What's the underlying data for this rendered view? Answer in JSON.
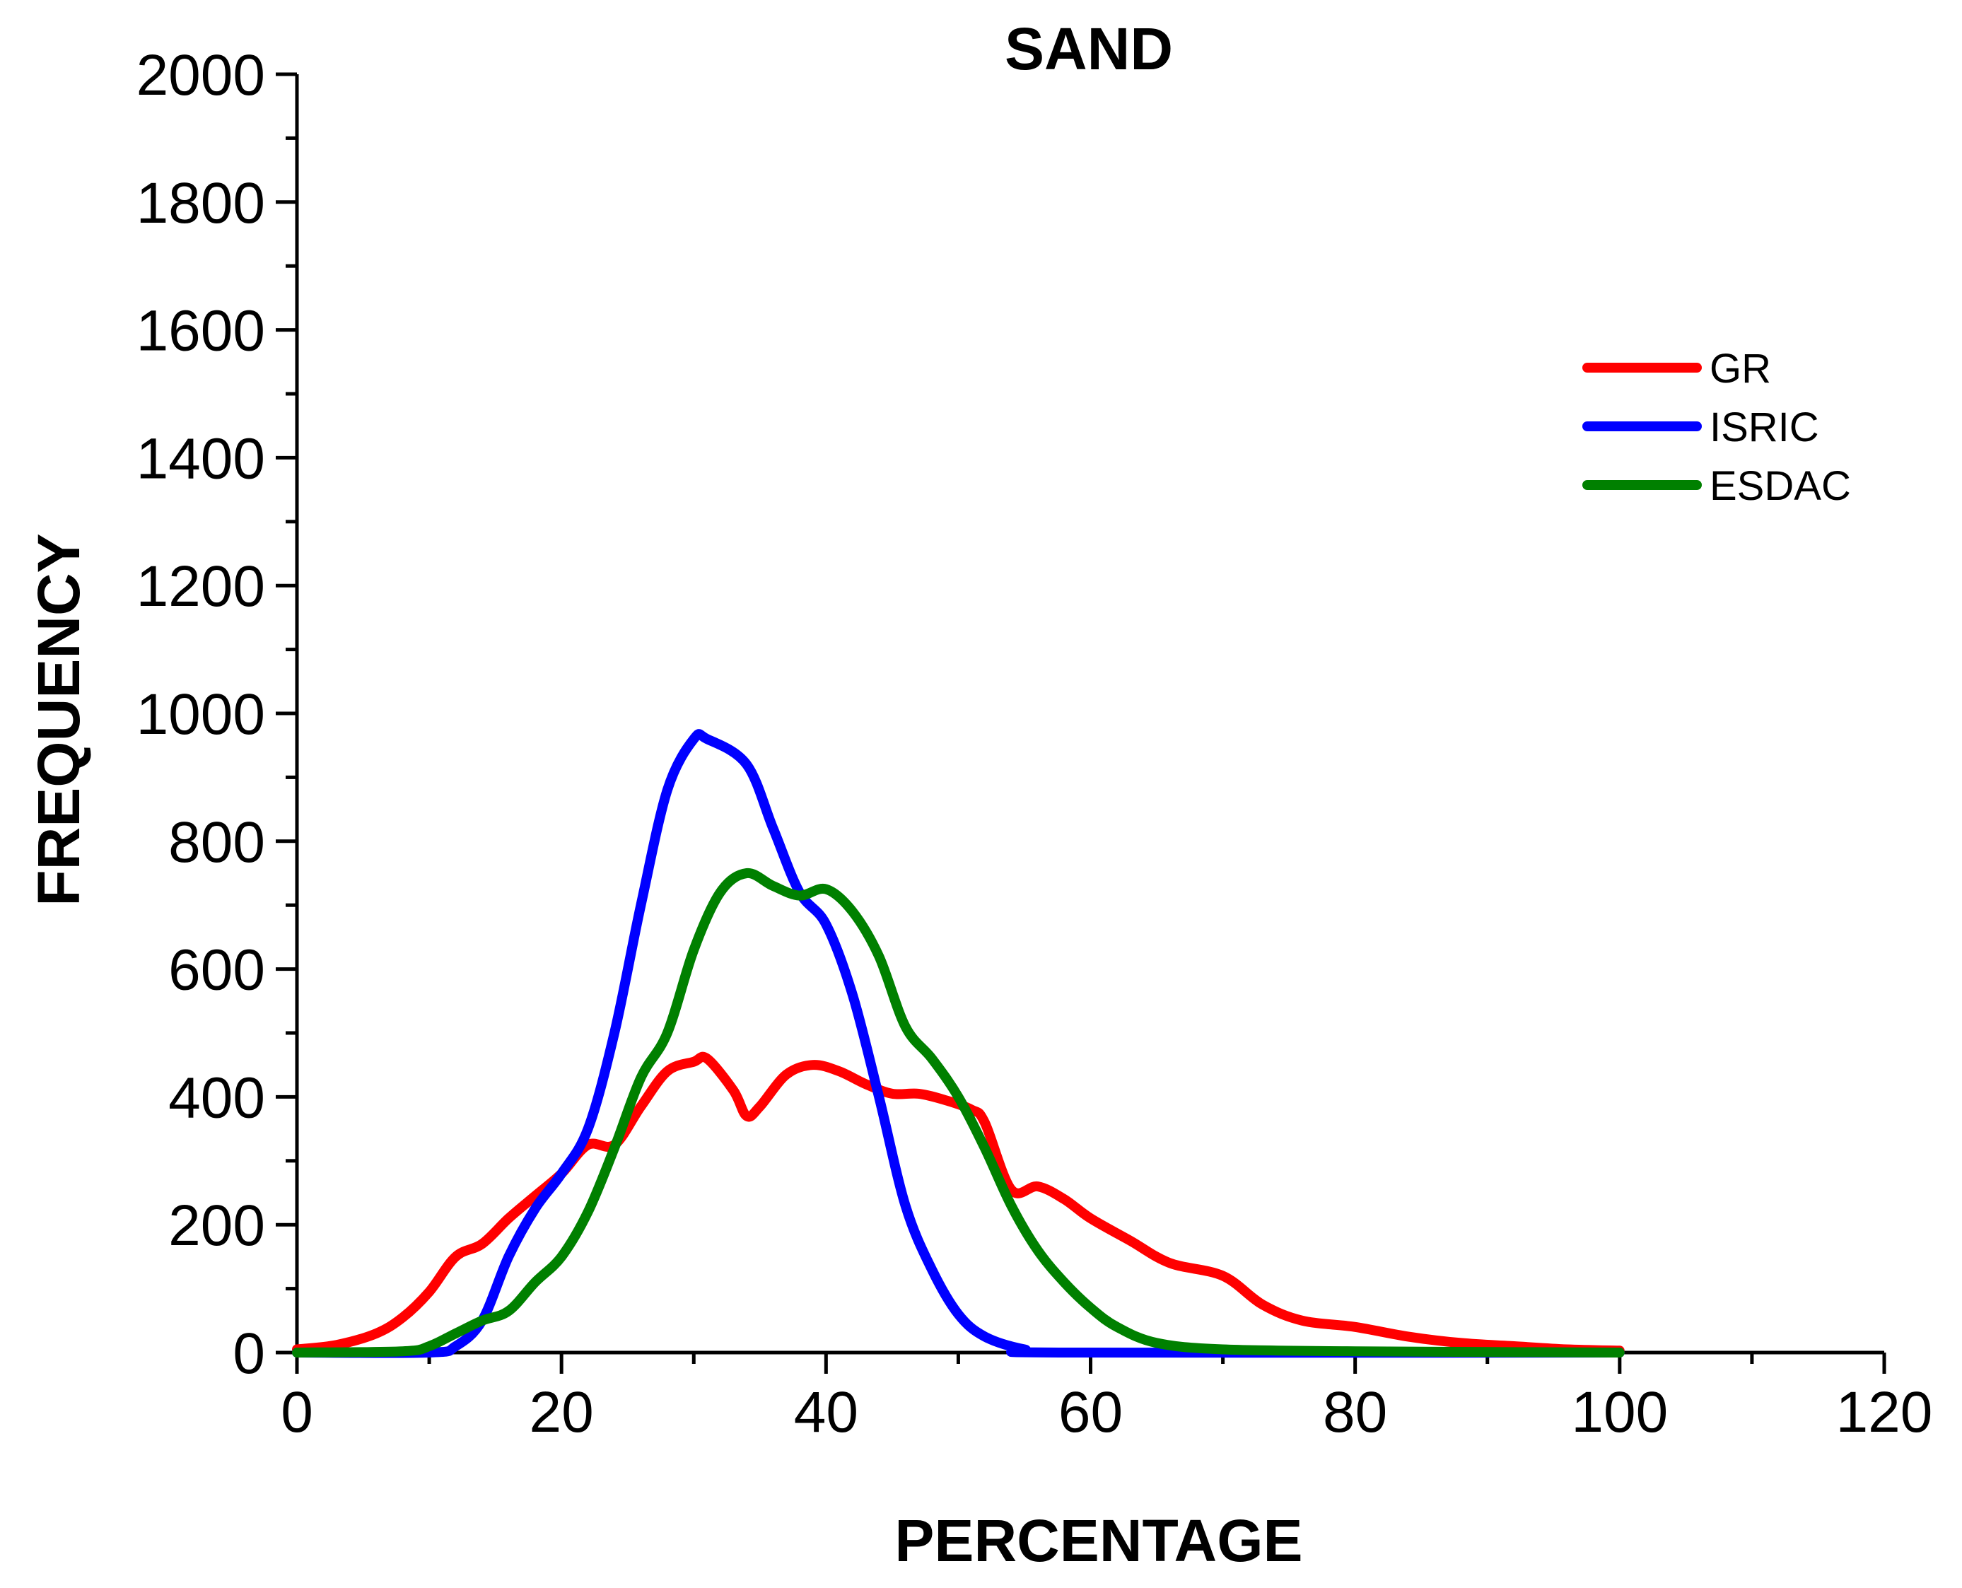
{
  "chart_data": {
    "type": "line",
    "title": "SAND",
    "xlabel": "PERCENTAGE",
    "ylabel": "FREQUENCY",
    "xlim": [
      0,
      120
    ],
    "ylim": [
      0,
      2000
    ],
    "x_ticks": [
      0,
      20,
      40,
      60,
      80,
      100,
      120
    ],
    "y_ticks": [
      0,
      200,
      400,
      600,
      800,
      1000,
      1200,
      1400,
      1600,
      1800,
      2000
    ],
    "x_tick_labels": [
      "0",
      "20",
      "40",
      "60",
      "80",
      "100",
      "120"
    ],
    "y_tick_labels": [
      "0",
      "200",
      "400",
      "600",
      "800",
      "1000",
      "1200",
      "1400",
      "1600",
      "1800",
      "2000"
    ],
    "legend_position": "top-right",
    "grid": false,
    "series": [
      {
        "name": "GR",
        "color": "#ff0000",
        "points": [
          [
            0,
            5
          ],
          [
            3,
            12
          ],
          [
            6,
            30
          ],
          [
            8,
            55
          ],
          [
            10,
            95
          ],
          [
            12,
            150
          ],
          [
            14,
            170
          ],
          [
            16,
            210
          ],
          [
            18,
            245
          ],
          [
            20,
            280
          ],
          [
            22,
            325
          ],
          [
            24,
            325
          ],
          [
            26,
            385
          ],
          [
            28,
            440
          ],
          [
            30,
            455
          ],
          [
            31,
            460
          ],
          [
            33,
            410
          ],
          [
            34,
            370
          ],
          [
            35,
            385
          ],
          [
            37,
            435
          ],
          [
            39,
            450
          ],
          [
            41,
            440
          ],
          [
            43,
            420
          ],
          [
            45,
            405
          ],
          [
            47,
            405
          ],
          [
            49,
            395
          ],
          [
            51,
            380
          ],
          [
            52,
            360
          ],
          [
            54,
            255
          ],
          [
            56,
            260
          ],
          [
            58,
            240
          ],
          [
            60,
            210
          ],
          [
            63,
            175
          ],
          [
            66,
            140
          ],
          [
            70,
            120
          ],
          [
            73,
            75
          ],
          [
            76,
            50
          ],
          [
            80,
            40
          ],
          [
            84,
            25
          ],
          [
            88,
            15
          ],
          [
            92,
            10
          ],
          [
            96,
            5
          ],
          [
            100,
            3
          ]
        ]
      },
      {
        "name": "ISRIC",
        "color": "#0000ff",
        "points": [
          [
            0,
            0
          ],
          [
            10,
            0
          ],
          [
            12,
            10
          ],
          [
            14,
            50
          ],
          [
            16,
            150
          ],
          [
            18,
            225
          ],
          [
            20,
            280
          ],
          [
            22,
            350
          ],
          [
            24,
            500
          ],
          [
            26,
            700
          ],
          [
            28,
            880
          ],
          [
            30,
            960
          ],
          [
            31,
            960
          ],
          [
            34,
            920
          ],
          [
            36,
            820
          ],
          [
            38,
            720
          ],
          [
            40,
            670
          ],
          [
            42,
            560
          ],
          [
            44,
            400
          ],
          [
            46,
            230
          ],
          [
            48,
            130
          ],
          [
            50,
            60
          ],
          [
            52,
            25
          ],
          [
            55,
            5
          ],
          [
            58,
            0
          ],
          [
            100,
            0
          ]
        ]
      },
      {
        "name": "ESDAC",
        "color": "#008000",
        "points": [
          [
            0,
            0
          ],
          [
            8,
            2
          ],
          [
            10,
            10
          ],
          [
            12,
            30
          ],
          [
            14,
            50
          ],
          [
            16,
            65
          ],
          [
            18,
            110
          ],
          [
            20,
            150
          ],
          [
            22,
            220
          ],
          [
            24,
            320
          ],
          [
            26,
            430
          ],
          [
            28,
            500
          ],
          [
            30,
            630
          ],
          [
            32,
            720
          ],
          [
            34,
            750
          ],
          [
            36,
            730
          ],
          [
            38,
            715
          ],
          [
            40,
            725
          ],
          [
            42,
            690
          ],
          [
            44,
            620
          ],
          [
            46,
            510
          ],
          [
            48,
            460
          ],
          [
            50,
            400
          ],
          [
            52,
            320
          ],
          [
            54,
            230
          ],
          [
            56,
            160
          ],
          [
            58,
            110
          ],
          [
            60,
            70
          ],
          [
            62,
            40
          ],
          [
            65,
            15
          ],
          [
            70,
            5
          ],
          [
            80,
            2
          ],
          [
            100,
            0
          ]
        ]
      }
    ]
  }
}
